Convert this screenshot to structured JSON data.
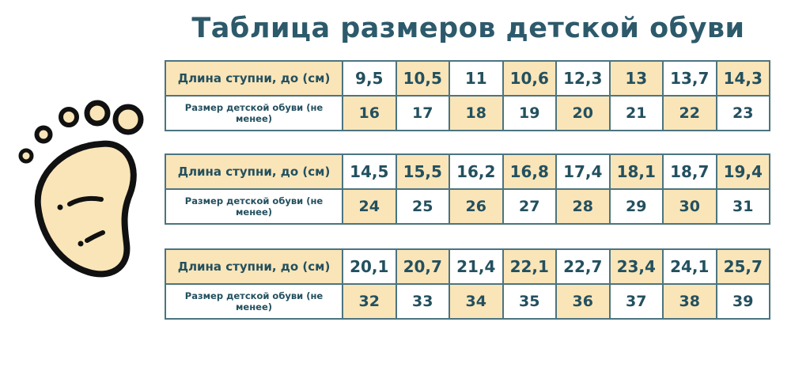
{
  "title": "Таблица размеров детской обуви",
  "row_labels": {
    "length": "Длина ступни, до (см)",
    "size": "Размер детской обуви (не менее)"
  },
  "tables": [
    {
      "lengths": [
        "9,5",
        "10,5",
        "11",
        "10,6",
        "12,3",
        "13",
        "13,7",
        "14,3"
      ],
      "sizes": [
        "16",
        "17",
        "18",
        "19",
        "20",
        "21",
        "22",
        "23"
      ]
    },
    {
      "lengths": [
        "14,5",
        "15,5",
        "16,2",
        "16,8",
        "17,4",
        "18,1",
        "18,7",
        "19,4"
      ],
      "sizes": [
        "24",
        "25",
        "26",
        "27",
        "28",
        "29",
        "30",
        "31"
      ]
    },
    {
      "lengths": [
        "20,1",
        "20,7",
        "21,4",
        "22,1",
        "22,7",
        "23,4",
        "24,1",
        "25,7"
      ],
      "sizes": [
        "32",
        "33",
        "34",
        "35",
        "36",
        "37",
        "38",
        "39"
      ]
    }
  ],
  "colors": {
    "highlight": "#fae5b8",
    "border": "#4b7480",
    "text": "#23505f",
    "title": "#2d5a6b",
    "foot_fill": "#fae5b8"
  },
  "icons": {
    "foot": "baby-footprint-icon"
  }
}
